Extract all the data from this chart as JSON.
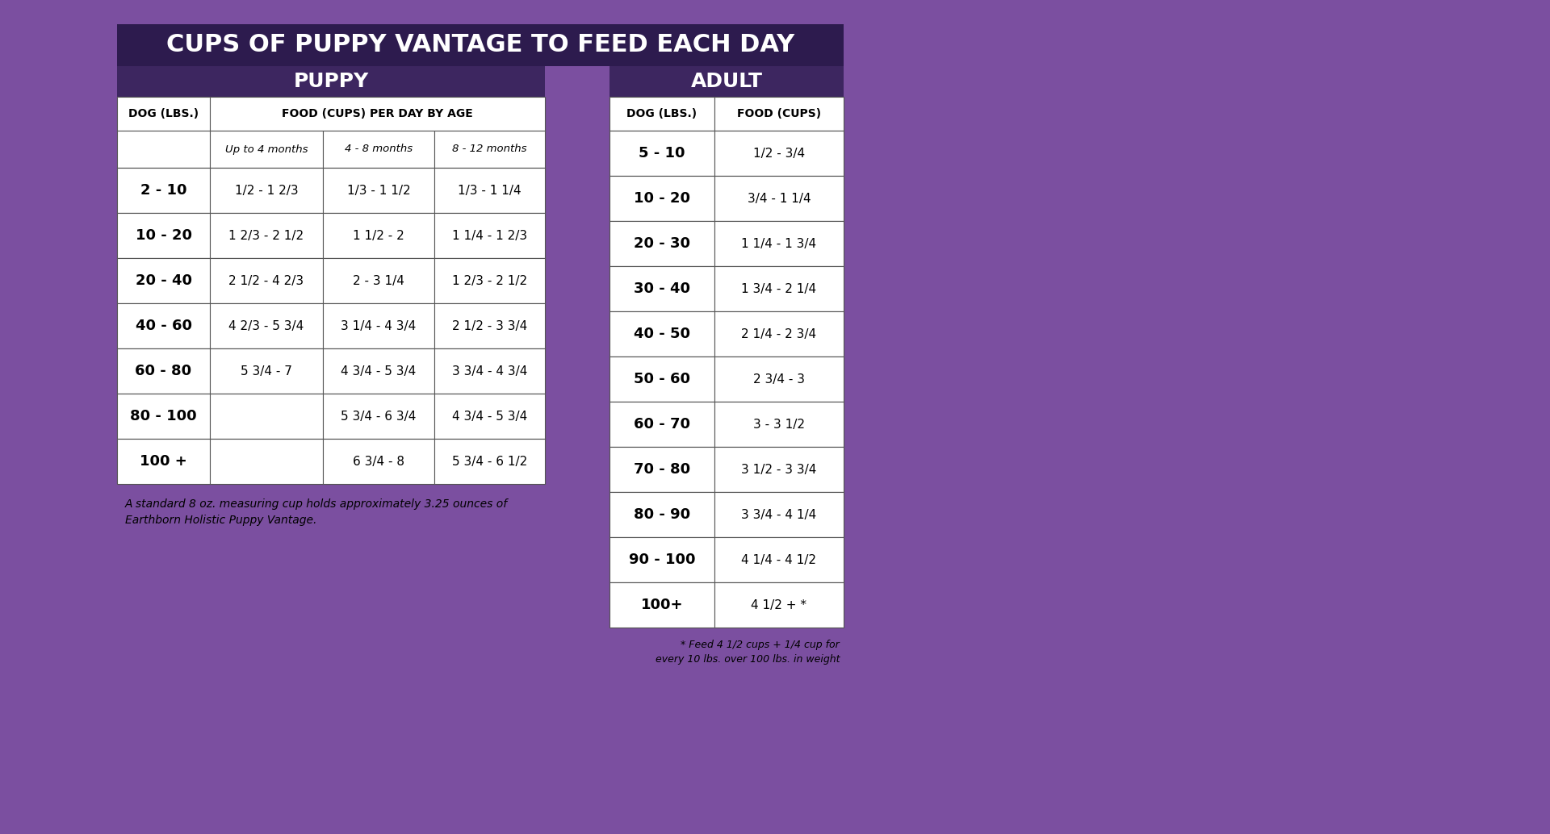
{
  "title": "CUPS OF PUPPY VANTAGE TO FEED EACH DAY",
  "bg_color": "#7B4FA0",
  "header_dark": "#2D1B4E",
  "header_medium": "#3D2660",
  "cell_bg": "#FFFFFF",
  "cell_alt": "#F5F5F5",
  "border_color": "#555555",
  "title_color": "#FFFFFF",
  "header_text_color": "#FFFFFF",
  "cell_text_color": "#1A1A1A",
  "puppy_cols": [
    "DOG (LBS.)",
    "Up to 4 months",
    "4 - 8 months",
    "8 - 12 months"
  ],
  "puppy_rows": [
    [
      "",
      "",
      "",
      ""
    ],
    [
      "2 - 10",
      "1/2 - 1 2/3",
      "1/3 - 1 1/2",
      "1/3 - 1 1/4"
    ],
    [
      "10 - 20",
      "1 2/3 - 2 1/2",
      "1 1/2 - 2",
      "1 1/4 - 1 2/3"
    ],
    [
      "20 - 40",
      "2 1/2 - 4 2/3",
      "2 - 3 1/4",
      "1 2/3 - 2 1/2"
    ],
    [
      "40 - 60",
      "4 2/3 - 5 3/4",
      "3 1/4 - 4 3/4",
      "2 1/2 - 3 3/4"
    ],
    [
      "60 - 80",
      "5 3/4 - 7",
      "4 3/4 - 5 3/4",
      "3 3/4 - 4 3/4"
    ],
    [
      "80 - 100",
      "",
      "5 3/4 - 6 3/4",
      "4 3/4 - 5 3/4"
    ],
    [
      "100 +",
      "",
      "6 3/4 - 8",
      "5 3/4 - 6 1/2"
    ]
  ],
  "adult_cols": [
    "DOG (LBS.)",
    "FOOD (CUPS)"
  ],
  "adult_rows": [
    [
      "5 - 10",
      "1/2 - 3/4"
    ],
    [
      "10 - 20",
      "3/4 - 1 1/4"
    ],
    [
      "20 - 30",
      "1 1/4 - 1 3/4"
    ],
    [
      "30 - 40",
      "1 3/4 - 2 1/4"
    ],
    [
      "40 - 50",
      "2 1/4 - 2 3/4"
    ],
    [
      "50 - 60",
      "2 3/4 - 3"
    ],
    [
      "60 - 70",
      "3 - 3 1/2"
    ],
    [
      "70 - 80",
      "3 1/2 - 3 3/4"
    ],
    [
      "80 - 90",
      "3 3/4 - 4 1/4"
    ],
    [
      "90 - 100",
      "4 1/4 - 4 1/2"
    ],
    [
      "100+",
      "4 1/2 + *"
    ]
  ],
  "note1": "A standard 8 oz. measuring cup holds approximately 3.25 ounces of\nEarthborn Holistic Puppy Vantage.",
  "note2": "* Feed 4 1/2 cups + 1/4 cup for\nevery 10 lbs. over 100 lbs. in weight"
}
